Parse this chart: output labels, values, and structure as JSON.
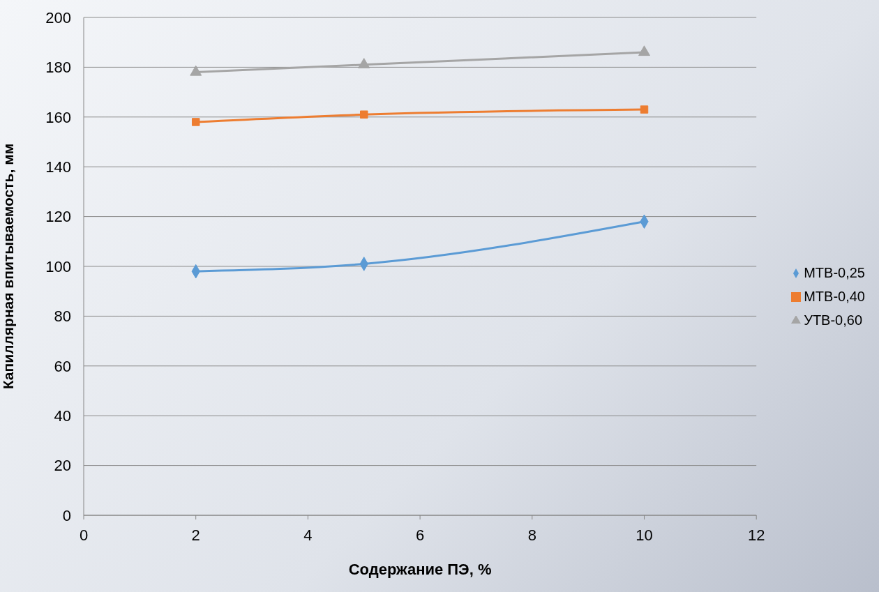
{
  "chart_data": {
    "type": "line",
    "xlabel": "Содержание ПЭ, %",
    "ylabel": "Капиллярная впитываемость, мм",
    "x": [
      2,
      5,
      10
    ],
    "series": [
      {
        "name": "МТВ-0,25",
        "color": "#5b9bd5",
        "values": [
          98,
          101,
          118
        ],
        "marker": "diamond"
      },
      {
        "name": "МТВ-0,40",
        "color": "#ed7d31",
        "values": [
          158,
          161,
          163
        ],
        "marker": "square"
      },
      {
        "name": "УТВ-0,60",
        "color": "#a5a5a5",
        "values": [
          178,
          181,
          186
        ],
        "marker": "triangle"
      }
    ],
    "xlim": [
      0,
      12
    ],
    "xticks": [
      0,
      2,
      4,
      6,
      8,
      10,
      12
    ],
    "ylim": [
      0,
      200
    ],
    "yticks": [
      0,
      20,
      40,
      60,
      80,
      100,
      120,
      140,
      160,
      180,
      200
    ],
    "grid": "y",
    "legend": "right"
  }
}
